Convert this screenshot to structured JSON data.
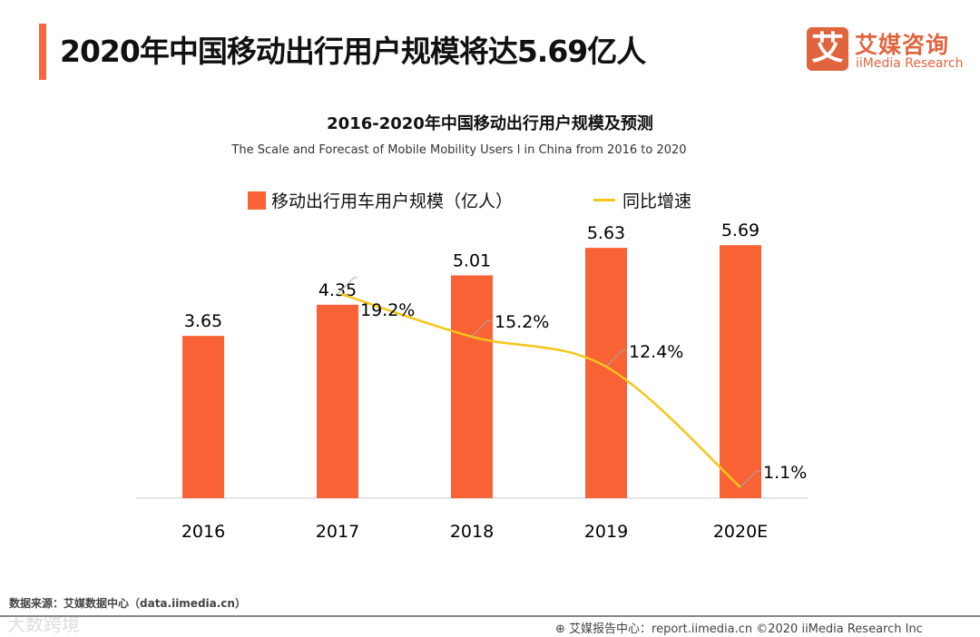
{
  "header": {
    "title": "2020年中国移动出行用户规模将达5.69亿人",
    "logo_mark": "艾",
    "logo_cn": "艾媒咨询",
    "logo_en": "iiMedia Research"
  },
  "footer": {
    "source": "数据来源：艾媒数据中心（data.iimedia.cn）",
    "watermark": "大数跨境",
    "report": "艾媒报告中心：report.iimedia.cn ©2020  iiMedia Research  Inc"
  },
  "colors": {
    "bar": "#f96234",
    "line": "#f5c518",
    "accent": "#f26a3d"
  },
  "chart_data": {
    "type": "bar+line",
    "title": "2016-2020年中国移动出行用户规模及预测",
    "subtitle": "The Scale and Forecast of Mobile Mobility Users l in China from 2016 to 2020",
    "categories": [
      "2016",
      "2017",
      "2018",
      "2019",
      "2020E"
    ],
    "series": [
      {
        "name": "移动出行用车用户规模（亿人）",
        "type": "bar",
        "values": [
          3.65,
          4.35,
          5.01,
          5.63,
          5.69
        ],
        "labels": [
          "3.65",
          "4.35",
          "5.01",
          "5.63",
          "5.69"
        ]
      },
      {
        "name": "同比增速",
        "type": "line",
        "values": [
          null,
          19.2,
          15.2,
          12.4,
          1.1
        ],
        "labels": [
          "",
          "19.2%",
          "15.2%",
          "12.4%",
          "1.1%"
        ]
      }
    ],
    "legend": "top-center",
    "grid": false
  }
}
